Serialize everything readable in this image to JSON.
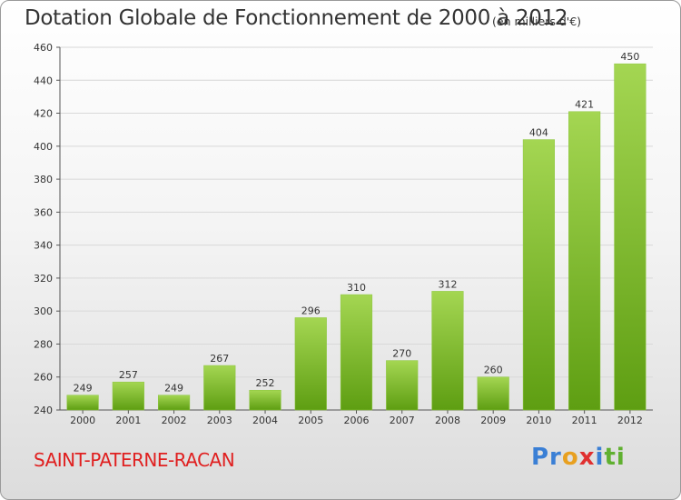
{
  "header": {
    "title": "Dotation Globale de Fonctionnement de 2000 à 2012",
    "unit": "(en milliers d'€)"
  },
  "footer": {
    "commune": "SAINT-PATERNE-RACAN",
    "logo": [
      "Pr",
      "o",
      "x",
      "i",
      "ti"
    ]
  },
  "colors": {
    "bar_top": "#a4d652",
    "bar_bottom": "#5e9e12",
    "grid": "#d8d8d8"
  },
  "chart_data": {
    "type": "bar",
    "title": "Dotation Globale de Fonctionnement de 2000 à 2012",
    "categories": [
      "2000",
      "2001",
      "2002",
      "2003",
      "2004",
      "2005",
      "2006",
      "2007",
      "2008",
      "2009",
      "2010",
      "2011",
      "2012"
    ],
    "values": [
      249,
      257,
      249,
      267,
      252,
      296,
      310,
      270,
      312,
      260,
      404,
      421,
      450
    ],
    "yticks": [
      240,
      260,
      280,
      300,
      320,
      340,
      360,
      380,
      400,
      420,
      440,
      460
    ],
    "ylim": [
      240,
      460
    ],
    "grid": true,
    "xlabel": "",
    "ylabel": ""
  }
}
